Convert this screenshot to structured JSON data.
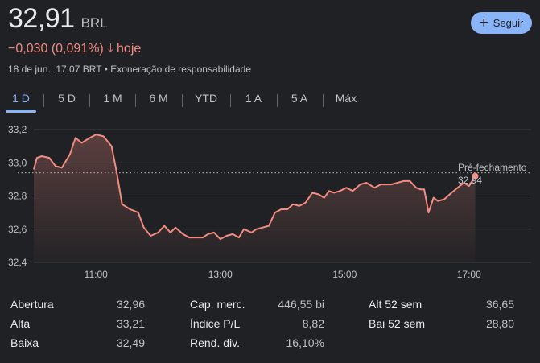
{
  "quote": {
    "price": "32,91",
    "currency": "BRL",
    "change": "−0,030 (0,091%)",
    "change_period": "hoje",
    "timestamp": "18 de jun., 17:07 BRT",
    "disclaimer": "Exoneração de responsabilidade"
  },
  "follow_button": {
    "label": "Seguir"
  },
  "ranges": [
    "1 D",
    "5 D",
    "1 M",
    "6 M",
    "YTD",
    "1 A",
    "5 A",
    "Máx"
  ],
  "active_range": "1 D",
  "colors": {
    "line": "#f28b82",
    "accent": "#8ab4f8",
    "negative": "#f28b82",
    "background": "#202124"
  },
  "chart_data": {
    "type": "line",
    "x_ticks": [
      "11:00",
      "13:00",
      "15:00",
      "17:00"
    ],
    "y_ticks": [
      "33,2",
      "33,0",
      "32,8",
      "32,6",
      "32,4"
    ],
    "xlim_hours": [
      10.0,
      18.0
    ],
    "ylim": [
      32.4,
      33.2
    ],
    "reference_line": {
      "label": "Pré-fechamento",
      "value_label": "32,94",
      "value": 32.94
    },
    "x_hours": [
      10.0,
      10.05,
      10.13,
      10.25,
      10.35,
      10.45,
      10.58,
      10.67,
      10.77,
      10.9,
      11.0,
      11.12,
      11.25,
      11.33,
      11.42,
      11.55,
      11.68,
      11.77,
      11.88,
      12.0,
      12.1,
      12.2,
      12.28,
      12.4,
      12.5,
      12.6,
      12.72,
      12.8,
      12.9,
      13.0,
      13.1,
      13.2,
      13.3,
      13.38,
      13.5,
      13.58,
      13.68,
      13.78,
      13.88,
      13.98,
      14.08,
      14.17,
      14.27,
      14.37,
      14.48,
      14.58,
      14.67,
      14.75,
      14.83,
      14.92,
      15.03,
      15.13,
      15.25,
      15.35,
      15.48,
      15.58,
      15.67,
      15.75,
      15.85,
      15.95,
      16.05,
      16.15,
      16.22,
      16.28,
      16.35,
      16.43,
      16.5,
      16.6,
      16.72,
      16.85,
      16.92,
      17.0,
      17.1
    ],
    "y_values": [
      32.96,
      33.03,
      33.04,
      33.03,
      32.98,
      32.97,
      33.05,
      33.15,
      33.12,
      33.15,
      33.17,
      33.16,
      33.1,
      32.95,
      32.75,
      32.72,
      32.7,
      32.61,
      32.56,
      32.58,
      32.62,
      32.58,
      32.61,
      32.57,
      32.55,
      32.55,
      32.55,
      32.57,
      32.58,
      32.54,
      32.56,
      32.57,
      32.55,
      32.6,
      32.58,
      32.6,
      32.61,
      32.62,
      32.7,
      32.72,
      32.72,
      32.75,
      32.74,
      32.76,
      32.82,
      32.81,
      32.79,
      32.83,
      32.82,
      32.83,
      32.85,
      32.83,
      32.87,
      32.88,
      32.85,
      32.87,
      32.87,
      32.87,
      32.88,
      32.89,
      32.89,
      32.85,
      32.84,
      32.84,
      32.7,
      32.79,
      32.77,
      32.78,
      32.82,
      32.86,
      32.88,
      32.86,
      32.92
    ]
  },
  "stats": {
    "col1": [
      {
        "label": "Abertura",
        "value": "32,96"
      },
      {
        "label": "Alta",
        "value": "33,21"
      },
      {
        "label": "Baixa",
        "value": "32,49"
      }
    ],
    "col2": [
      {
        "label": "Cap. merc.",
        "value": "446,55 bi"
      },
      {
        "label": "Índice P/L",
        "value": "8,82"
      },
      {
        "label": "Rend. div.",
        "value": "16,10%"
      }
    ],
    "col3": [
      {
        "label": "Alt 52 sem",
        "value": "36,65"
      },
      {
        "label": "Bai 52 sem",
        "value": "28,80"
      }
    ]
  }
}
